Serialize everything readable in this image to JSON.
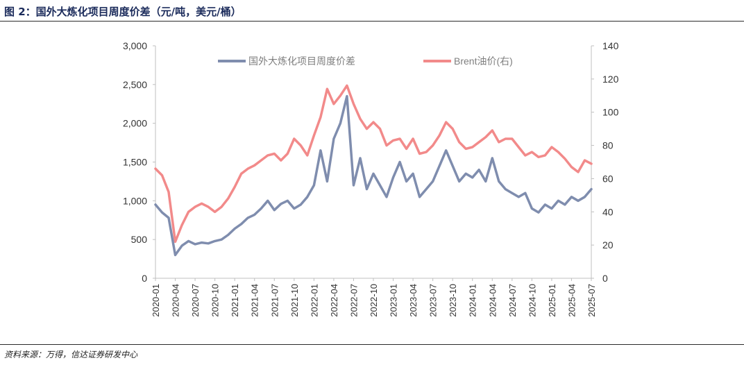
{
  "figure": {
    "title": "图 2：国外大炼化项目周度价差（元/吨，美元/桶）",
    "source": "资料来源：万得，信达证券研发中心"
  },
  "colors": {
    "spread": "#7F8DAE",
    "brent": "#F28A8A",
    "axis": "#bfbfbf",
    "text": "#333333"
  },
  "chart_data": {
    "type": "line",
    "title": "",
    "x": [
      "2020-01",
      "2020-02",
      "2020-03",
      "2020-04",
      "2020-05",
      "2020-06",
      "2020-07",
      "2020-08",
      "2020-09",
      "2020-10",
      "2020-11",
      "2020-12",
      "2021-01",
      "2021-02",
      "2021-03",
      "2021-04",
      "2021-05",
      "2021-06",
      "2021-07",
      "2021-08",
      "2021-09",
      "2021-10",
      "2021-11",
      "2021-12",
      "2022-01",
      "2022-02",
      "2022-03",
      "2022-04",
      "2022-05",
      "2022-06",
      "2022-07",
      "2022-08",
      "2022-09",
      "2022-10",
      "2022-11",
      "2022-12",
      "2023-01",
      "2023-02",
      "2023-03",
      "2023-04",
      "2023-05",
      "2023-06",
      "2023-07",
      "2023-08",
      "2023-09",
      "2023-10",
      "2023-11",
      "2023-12",
      "2024-01",
      "2024-02",
      "2024-03",
      "2024-04",
      "2024-05",
      "2024-06",
      "2024-07",
      "2024-08",
      "2024-09",
      "2024-10",
      "2024-11",
      "2024-12",
      "2025-01",
      "2025-02",
      "2025-03",
      "2025-04",
      "2025-05",
      "2025-06",
      "2025-07"
    ],
    "x_ticks": [
      "2020-01",
      "2020-04",
      "2020-07",
      "2020-10",
      "2021-01",
      "2021-04",
      "2021-07",
      "2021-10",
      "2022-01",
      "2022-04",
      "2022-07",
      "2022-10",
      "2023-01",
      "2023-04",
      "2023-07",
      "2023-10",
      "2024-01",
      "2024-04",
      "2024-07",
      "2024-10",
      "2025-01",
      "2025-04",
      "2025-07"
    ],
    "y_left": {
      "min": 0,
      "max": 3000,
      "ticks": [
        "0",
        "500",
        "1,000",
        "1,500",
        "2,000",
        "2,500",
        "3,000"
      ]
    },
    "y_right": {
      "min": 0,
      "max": 140,
      "ticks": [
        "0",
        "20",
        "40",
        "60",
        "80",
        "100",
        "120",
        "140"
      ]
    },
    "legend_position": "top",
    "series": [
      {
        "name": "国外大炼化项目周度价差",
        "axis": "left",
        "values": [
          950,
          850,
          780,
          300,
          420,
          480,
          440,
          460,
          450,
          480,
          500,
          560,
          640,
          700,
          780,
          820,
          900,
          1000,
          880,
          960,
          1000,
          900,
          950,
          1050,
          1200,
          1650,
          1250,
          1800,
          2000,
          2350,
          1200,
          1550,
          1150,
          1350,
          1200,
          1050,
          1300,
          1500,
          1250,
          1350,
          1050,
          1150,
          1250,
          1450,
          1650,
          1450,
          1250,
          1350,
          1300,
          1400,
          1250,
          1550,
          1250,
          1150,
          1100,
          1050,
          1100,
          900,
          850,
          950,
          900,
          1000,
          950,
          1050,
          1000,
          1050,
          1150
        ]
      },
      {
        "name": "Brent油价(右)",
        "axis": "right",
        "values": [
          66,
          62,
          52,
          22,
          32,
          40,
          43,
          45,
          43,
          40,
          43,
          48,
          55,
          63,
          66,
          68,
          71,
          74,
          75,
          71,
          75,
          84,
          80,
          74,
          86,
          97,
          114,
          105,
          110,
          116,
          105,
          96,
          90,
          94,
          90,
          80,
          83,
          84,
          78,
          84,
          75,
          76,
          80,
          86,
          94,
          90,
          82,
          78,
          79,
          82,
          85,
          89,
          82,
          84,
          84,
          79,
          74,
          76,
          73,
          74,
          79,
          76,
          72,
          67,
          64,
          71,
          69
        ]
      }
    ]
  }
}
